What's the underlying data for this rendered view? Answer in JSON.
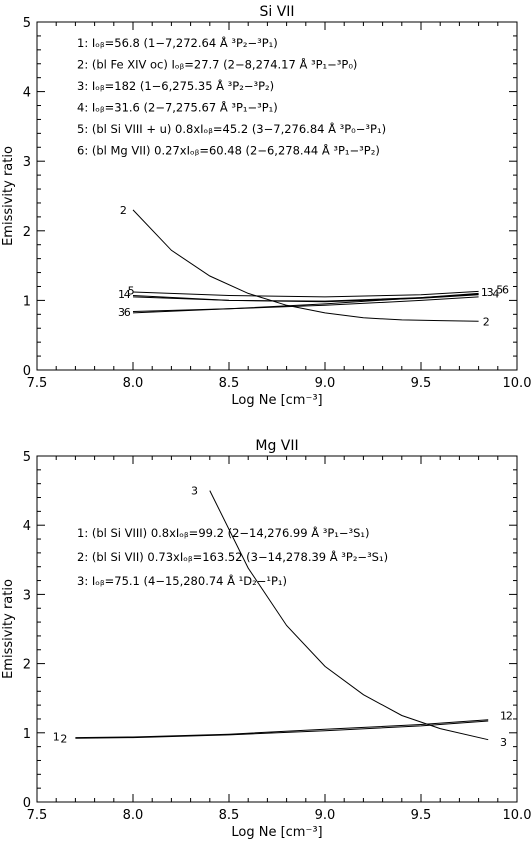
{
  "chart_data": [
    {
      "type": "line",
      "title": "Si VII",
      "xlabel": "Log Ne [cm⁻³]",
      "ylabel": "Emissivity ratio",
      "xlim": [
        7.5,
        10.0
      ],
      "ylim": [
        0,
        5
      ],
      "xticks": [
        "7.5",
        "8.0",
        "8.5",
        "9.0",
        "9.5",
        "10.0"
      ],
      "yticks": [
        "0",
        "1",
        "2",
        "3",
        "4",
        "5"
      ],
      "legend": [
        "1: Iₒᵦ=56.8 (1−7,272.64 Å ³P₂−³P₁)",
        "2: (bl Fe XIV oc) Iₒᵦ=27.7 (2−8,274.17 Å ³P₁−³P₀)",
        "3: Iₒᵦ=182 (1−6,275.35 Å ³P₂−³P₂)",
        "4:  Iₒᵦ=31.6 (2−7,275.67 Å ³P₁−³P₁)",
        "5: (bl Si VIII + u) 0.8xIₒᵦ=45.2 (3−7,276.84 Å ³P₀−³P₁)",
        "6: (bl Mg VII) 0.27xIₒᵦ=60.48 (2−6,278.44 Å ³P₁−³P₂)"
      ],
      "series": [
        {
          "name": "1",
          "x": [
            8.0,
            8.5,
            9.0,
            9.5,
            9.8
          ],
          "y": [
            1.07,
            1.0,
            0.98,
            1.03,
            1.08
          ]
        },
        {
          "name": "2",
          "x": [
            8.0,
            8.2,
            8.4,
            8.6,
            8.8,
            9.0,
            9.2,
            9.4,
            9.6,
            9.8
          ],
          "y": [
            2.3,
            1.72,
            1.35,
            1.1,
            0.93,
            0.82,
            0.75,
            0.72,
            0.71,
            0.7
          ]
        },
        {
          "name": "3",
          "x": [
            8.0,
            8.5,
            9.0,
            9.5,
            9.8
          ],
          "y": [
            0.82,
            0.88,
            0.95,
            1.04,
            1.1
          ]
        },
        {
          "name": "4",
          "x": [
            8.0,
            8.5,
            9.0,
            9.5,
            9.8
          ],
          "y": [
            1.05,
            1.0,
            0.99,
            1.04,
            1.09
          ]
        },
        {
          "name": "5",
          "x": [
            8.0,
            8.5,
            9.0,
            9.5,
            9.8
          ],
          "y": [
            1.12,
            1.07,
            1.05,
            1.08,
            1.13
          ]
        },
        {
          "name": "6",
          "x": [
            8.0,
            8.5,
            9.0,
            9.5,
            9.8
          ],
          "y": [
            0.84,
            0.88,
            0.93,
            1.0,
            1.05
          ]
        }
      ],
      "end_labels": {
        "left": [
          {
            "text": "2",
            "x": 7.95,
            "y": 2.3
          },
          {
            "text": "1",
            "x": 7.94,
            "y": 1.09
          },
          {
            "text": "4",
            "x": 7.97,
            "y": 1.09
          },
          {
            "text": "5",
            "x": 7.99,
            "y": 1.14
          },
          {
            "text": "3",
            "x": 7.94,
            "y": 0.83
          },
          {
            "text": "6",
            "x": 7.97,
            "y": 0.83
          }
        ],
        "right": [
          {
            "text": "1",
            "x": 9.83,
            "y": 1.12
          },
          {
            "text": "3",
            "x": 9.86,
            "y": 1.12
          },
          {
            "text": "4",
            "x": 9.89,
            "y": 1.1
          },
          {
            "text": "5",
            "x": 9.91,
            "y": 1.16
          },
          {
            "text": "6",
            "x": 9.94,
            "y": 1.16
          },
          {
            "text": "2",
            "x": 9.84,
            "y": 0.7
          }
        ]
      }
    },
    {
      "type": "line",
      "title": "Mg VII",
      "xlabel": "Log Ne [cm⁻³]",
      "ylabel": "Emissivity ratio",
      "xlim": [
        7.5,
        10.0
      ],
      "ylim": [
        0,
        5
      ],
      "xticks": [
        "7.5",
        "8.0",
        "8.5",
        "9.0",
        "9.5",
        "10.0"
      ],
      "yticks": [
        "0",
        "1",
        "2",
        "3",
        "4",
        "5"
      ],
      "legend": [
        "1: (bl Si VIII) 0.8xIₒᵦ=99.2 (2−14,276.99 Å ³P₁−³S₁)",
        "2: (bl Si VII) 0.73xIₒᵦ=163.52 (3−14,278.39 Å ³P₂−³S₁)",
        "3: Iₒᵦ=75.1 (4−15,280.74 Å ¹D₂−¹P₁)"
      ],
      "series": [
        {
          "name": "1",
          "x": [
            7.7,
            8.0,
            8.5,
            9.0,
            9.5,
            9.85
          ],
          "y": [
            0.92,
            0.93,
            0.97,
            1.03,
            1.1,
            1.17
          ]
        },
        {
          "name": "2",
          "x": [
            7.7,
            8.0,
            8.5,
            9.0,
            9.5,
            9.85
          ],
          "y": [
            0.93,
            0.94,
            0.98,
            1.05,
            1.12,
            1.19
          ]
        },
        {
          "name": "3",
          "x": [
            8.4,
            8.6,
            8.8,
            9.0,
            9.2,
            9.4,
            9.6,
            9.85
          ],
          "y": [
            4.5,
            3.38,
            2.55,
            1.96,
            1.55,
            1.25,
            1.06,
            0.9
          ]
        }
      ],
      "end_labels": {
        "left": [
          {
            "text": "3",
            "x": 8.32,
            "y": 4.5
          },
          {
            "text": "1",
            "x": 7.6,
            "y": 0.95
          },
          {
            "text": "2",
            "x": 7.64,
            "y": 0.92
          }
        ],
        "right": [
          {
            "text": "1",
            "x": 9.93,
            "y": 1.25
          },
          {
            "text": "2",
            "x": 9.96,
            "y": 1.25
          },
          {
            "text": "3",
            "x": 9.93,
            "y": 0.87
          }
        ]
      }
    }
  ]
}
